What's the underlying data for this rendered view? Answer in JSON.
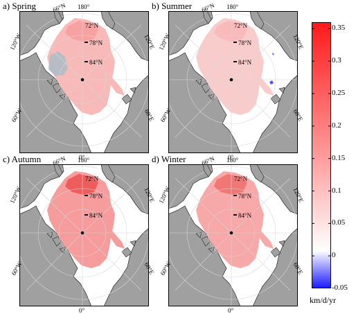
{
  "panels": [
    {
      "label": "a) Spring"
    },
    {
      "label": "b) Summer"
    },
    {
      "label": "c) Autumn"
    },
    {
      "label": "d) Winter"
    }
  ],
  "map_labels": {
    "lon_top": "180°",
    "lon_bottom": "0°",
    "lon_left_upper": "120°W",
    "lon_left_lower": "60°W",
    "lon_right_upper": "120°E",
    "lon_right_lower": "60°E",
    "lon_upper_left": "66°N",
    "lat_72": "72°N",
    "lat_78": "78°N",
    "lat_84": "84°N"
  },
  "colorbar": {
    "unit": "km/d/yr",
    "min": -0.05,
    "max": 0.36,
    "ticks": [
      "0.35",
      "0.3",
      "0.25",
      "0.2",
      "0.15",
      "0.1",
      "0.05",
      "0",
      "-0.05"
    ],
    "tick_values": [
      0.35,
      0.3,
      0.25,
      0.2,
      0.15,
      0.1,
      0.05,
      0,
      -0.05
    ],
    "colors": {
      "max": "#ff1a1a",
      "mid": "#ffffff",
      "min": "#0000ff",
      "land": "#a0a0a0",
      "sea": "#ffffff"
    }
  }
}
